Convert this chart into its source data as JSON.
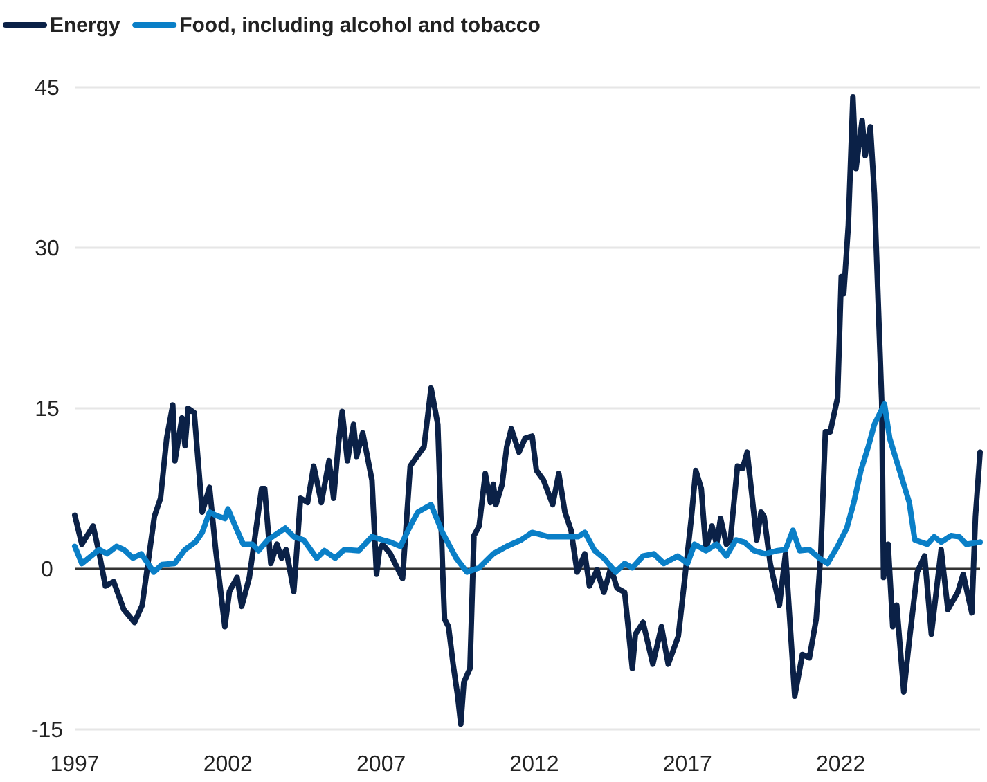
{
  "chart_data": {
    "type": "line",
    "xlim": [
      1997,
      2026.55
    ],
    "xticks": [
      1997,
      2002,
      2007,
      2012,
      2017,
      2022
    ],
    "ylim": [
      -15,
      45
    ],
    "yticks": [
      -15,
      0,
      15,
      30,
      45
    ],
    "grid": "y",
    "legend": "top left",
    "ref_lines": [
      {
        "axis": "y",
        "value": 0,
        "color": "#333333"
      }
    ],
    "series": [
      {
        "name": "Energy",
        "color": "#0b2147",
        "x": [
          1997,
          1997.23,
          1997.6,
          1997.8,
          1998,
          1998.27,
          1998.6,
          1998.95,
          1999.2,
          1999.6,
          1999.8,
          2000,
          2000.2,
          2000.27,
          2000.5,
          2000.6,
          2000.7,
          2000.9,
          2001.1,
          2001.16,
          2001.4,
          2001.6,
          2001.9,
          2002.05,
          2002.3,
          2002.45,
          2002.7,
          2003.1,
          2003.2,
          2003.4,
          2003.6,
          2003.75,
          2003.9,
          2004.15,
          2004.37,
          2004.6,
          2004.8,
          2005.05,
          2005.3,
          2005.45,
          2005.6,
          2005.73,
          2005.9,
          2006.1,
          2006.2,
          2006.4,
          2006.7,
          2006.85,
          2006.95,
          2007.05,
          2007.3,
          2007.7,
          2007.95,
          2008.17,
          2008.4,
          2008.63,
          2008.85,
          2009,
          2009.07,
          2009.2,
          2009.35,
          2009.5,
          2009.6,
          2009.7,
          2009.9,
          2010.03,
          2010.2,
          2010.4,
          2010.57,
          2010.66,
          2010.75,
          2010.95,
          2011.1,
          2011.25,
          2011.5,
          2011.7,
          2011.93,
          2012.07,
          2012.3,
          2012.6,
          2012.8,
          2013,
          2013.2,
          2013.4,
          2013.65,
          2013.8,
          2014.05,
          2014.27,
          2014.5,
          2014.7,
          2014.95,
          2015.2,
          2015.3,
          2015.55,
          2015.87,
          2016.15,
          2016.37,
          2016.7,
          2016.9,
          2017.13,
          2017.27,
          2017.45,
          2017.6,
          2017.8,
          2017.95,
          2018.08,
          2018.27,
          2018.4,
          2018.63,
          2018.8,
          2018.95,
          2019.26,
          2019.4,
          2019.5,
          2019.7,
          2020,
          2020.2,
          2020.5,
          2020.75,
          2020.98,
          2021.2,
          2021.35,
          2021.5,
          2021.66,
          2021.9,
          2022.02,
          2022.1,
          2022.25,
          2022.4,
          2022.5,
          2022.7,
          2022.8,
          2022.97,
          2023.1,
          2023.34,
          2023.4,
          2023.55,
          2023.7,
          2023.83,
          2024.06,
          2024.24,
          2024.5,
          2024.74,
          2024.96,
          2025.28,
          2025.5,
          2025.82,
          2026,
          2026.28,
          2026.4,
          2026.55
        ],
        "values": [
          5,
          2.3,
          4,
          1.4,
          -1.6,
          -1.2,
          -3.8,
          -5,
          -3.4,
          4.9,
          6.6,
          12.2,
          15.3,
          10.1,
          14.1,
          11.5,
          15,
          14.6,
          7.5,
          5.3,
          7.6,
          1.8,
          -5.4,
          -2.1,
          -0.8,
          -3.5,
          -0.8,
          7.5,
          7.5,
          0.5,
          2.3,
          1,
          1.8,
          -2.1,
          6.6,
          6.2,
          9.6,
          6.2,
          10.1,
          6.6,
          11.5,
          14.7,
          10.1,
          13.5,
          10.5,
          12.7,
          8.3,
          -0.5,
          1.8,
          2.3,
          1.4,
          -0.9,
          9.6,
          10.5,
          11.4,
          16.9,
          13.5,
          0.5,
          -4.7,
          -5.4,
          -8.9,
          -11.9,
          -14.5,
          -10.6,
          -9.3,
          3.1,
          4,
          8.9,
          6.2,
          7.9,
          6,
          7.9,
          11.4,
          13.1,
          10.9,
          12.2,
          12.4,
          9.2,
          8.3,
          6,
          8.9,
          5.3,
          3.6,
          -0.3,
          1.4,
          -1.6,
          -0.1,
          -2.2,
          0.1,
          -1.8,
          -2.2,
          -9.3,
          -6.1,
          -5,
          -8.9,
          -5.4,
          -8.9,
          -6.3,
          -1.2,
          4.9,
          9.2,
          7.5,
          1.8,
          4,
          2.3,
          4.7,
          2.3,
          2.7,
          9.6,
          9.4,
          10.9,
          2.7,
          5.3,
          4.9,
          0.5,
          -3.4,
          1.4,
          -11.9,
          -8,
          -8.3,
          -4.7,
          1.4,
          12.8,
          12.8,
          16,
          27.3,
          25.7,
          32.1,
          44.1,
          37.4,
          41.9,
          38.6,
          41.3,
          35.1,
          15.7,
          -0.8,
          2.3,
          -5.4,
          -3.4,
          -11.5,
          -6.7,
          -0.3,
          1.2,
          -6.1,
          1.8,
          -3.8,
          -2.2,
          -0.5,
          -4.1,
          4.9,
          10.9
        ]
      },
      {
        "name": "Food, including alcohol and tobacco",
        "color": "#0a7fc7",
        "x": [
          1997,
          1997.23,
          1997.8,
          1998.05,
          1998.36,
          1998.6,
          1998.9,
          1999.17,
          1999.58,
          1999.85,
          2000.26,
          2000.6,
          2000.94,
          2001.16,
          2001.4,
          2001.6,
          2001.9,
          2002,
          2002.3,
          2002.5,
          2002.8,
          2003,
          2003.3,
          2003.87,
          2004.15,
          2004.47,
          2004.9,
          2005.15,
          2005.5,
          2005.8,
          2006.27,
          2006.7,
          2007.05,
          2007.3,
          2007.63,
          2007.95,
          2008.2,
          2008.63,
          2009,
          2009.45,
          2009.8,
          2010.2,
          2010.66,
          2011.1,
          2011.57,
          2011.93,
          2012.47,
          2013.06,
          2013.43,
          2013.65,
          2013.97,
          2014.27,
          2014.65,
          2014.95,
          2015.2,
          2015.55,
          2015.9,
          2016.23,
          2016.68,
          2017,
          2017.23,
          2017.6,
          2017.95,
          2018.27,
          2018.58,
          2018.85,
          2019.17,
          2019.53,
          2019.94,
          2020.2,
          2020.44,
          2020.66,
          2020.98,
          2021.3,
          2021.57,
          2021.9,
          2022.2,
          2022.43,
          2022.66,
          2022.9,
          2023.1,
          2023.43,
          2023.6,
          2023.92,
          2024.24,
          2024.42,
          2024.83,
          2025.05,
          2025.28,
          2025.6,
          2025.87,
          2026.1,
          2026.55
        ],
        "values": [
          2.1,
          0.5,
          1.8,
          1.4,
          2.1,
          1.8,
          1,
          1.4,
          -0.3,
          0.4,
          0.5,
          1.8,
          2.5,
          3.4,
          5.3,
          5,
          4.7,
          5.6,
          3.6,
          2.3,
          2.3,
          1.7,
          2.7,
          3.8,
          3,
          2.7,
          1,
          1.7,
          1,
          1.8,
          1.7,
          3,
          2.7,
          2.5,
          2.1,
          4,
          5.3,
          6,
          3.4,
          1,
          -0.3,
          0.1,
          1.4,
          2.1,
          2.7,
          3.4,
          3,
          3,
          3,
          3.4,
          1.7,
          1,
          -0.3,
          0.5,
          0.1,
          1.2,
          1.4,
          0.5,
          1.2,
          0.5,
          2.3,
          1.7,
          2.3,
          1.2,
          2.7,
          2.5,
          1.7,
          1.4,
          1.7,
          1.8,
          3.6,
          1.7,
          1.8,
          1,
          0.5,
          2.1,
          3.8,
          6.2,
          9.2,
          11.4,
          13.5,
          15.4,
          12.2,
          9.2,
          6.2,
          2.7,
          2.3,
          3,
          2.5,
          3.1,
          3,
          2.3,
          2.5
        ]
      }
    ]
  }
}
